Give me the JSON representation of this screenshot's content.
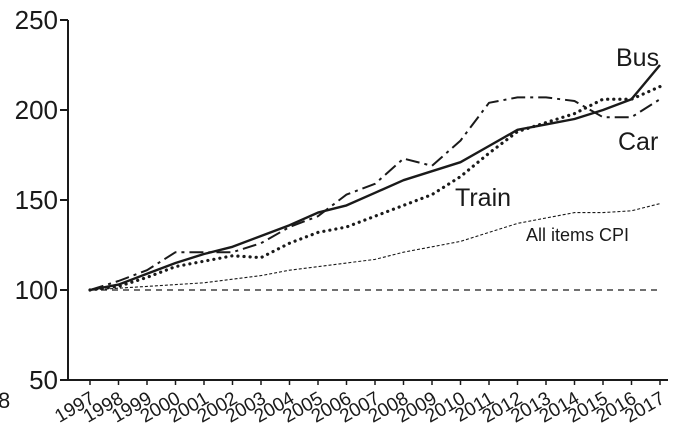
{
  "chart_data": {
    "type": "line",
    "title": "",
    "xlabel": "",
    "ylabel": "",
    "ylim": [
      50,
      250
    ],
    "yticks": [
      50,
      100,
      150,
      200,
      250
    ],
    "stray_fragment": "8",
    "categories": [
      "1997",
      "1998",
      "1999",
      "2000",
      "2001",
      "2002",
      "2003",
      "2004",
      "2005",
      "2006",
      "2007",
      "2008",
      "2009",
      "2010",
      "2011",
      "2012",
      "2013",
      "2014",
      "2015",
      "2016",
      "2017"
    ],
    "series": [
      {
        "name": "Bus",
        "style": "solid",
        "color": "#1a1a1a",
        "values": [
          100,
          103,
          109,
          115,
          120,
          124,
          130,
          136,
          143,
          147,
          154,
          161,
          166,
          171,
          180,
          189,
          192,
          195,
          200,
          206,
          225
        ]
      },
      {
        "name": "Car",
        "style": "dashdot",
        "color": "#1a1a1a",
        "values": [
          100,
          105,
          111,
          121,
          121,
          121,
          126,
          135,
          141,
          153,
          159,
          173,
          169,
          183,
          204,
          207,
          207,
          205,
          196,
          196,
          206
        ]
      },
      {
        "name": "Train",
        "style": "dotted",
        "color": "#1a1a1a",
        "values": [
          100,
          102,
          107,
          113,
          116,
          119,
          118,
          126,
          132,
          135,
          141,
          147,
          153,
          163,
          176,
          188,
          193,
          198,
          206,
          206,
          213
        ]
      },
      {
        "name": "All items CPI",
        "style": "fine-dashed",
        "color": "#1a1a1a",
        "values": [
          100,
          101,
          102,
          103,
          104,
          106,
          108,
          111,
          113,
          115,
          117,
          121,
          124,
          127,
          132,
          137,
          140,
          143,
          143,
          144,
          148
        ]
      },
      {
        "name": "",
        "style": "baseline-dashed",
        "color": "#1a1a1a",
        "values": [
          100,
          100,
          100,
          100,
          100,
          100,
          100,
          100,
          100,
          100,
          100,
          100,
          100,
          100,
          100,
          100,
          100,
          100,
          100,
          100,
          100
        ]
      }
    ]
  }
}
